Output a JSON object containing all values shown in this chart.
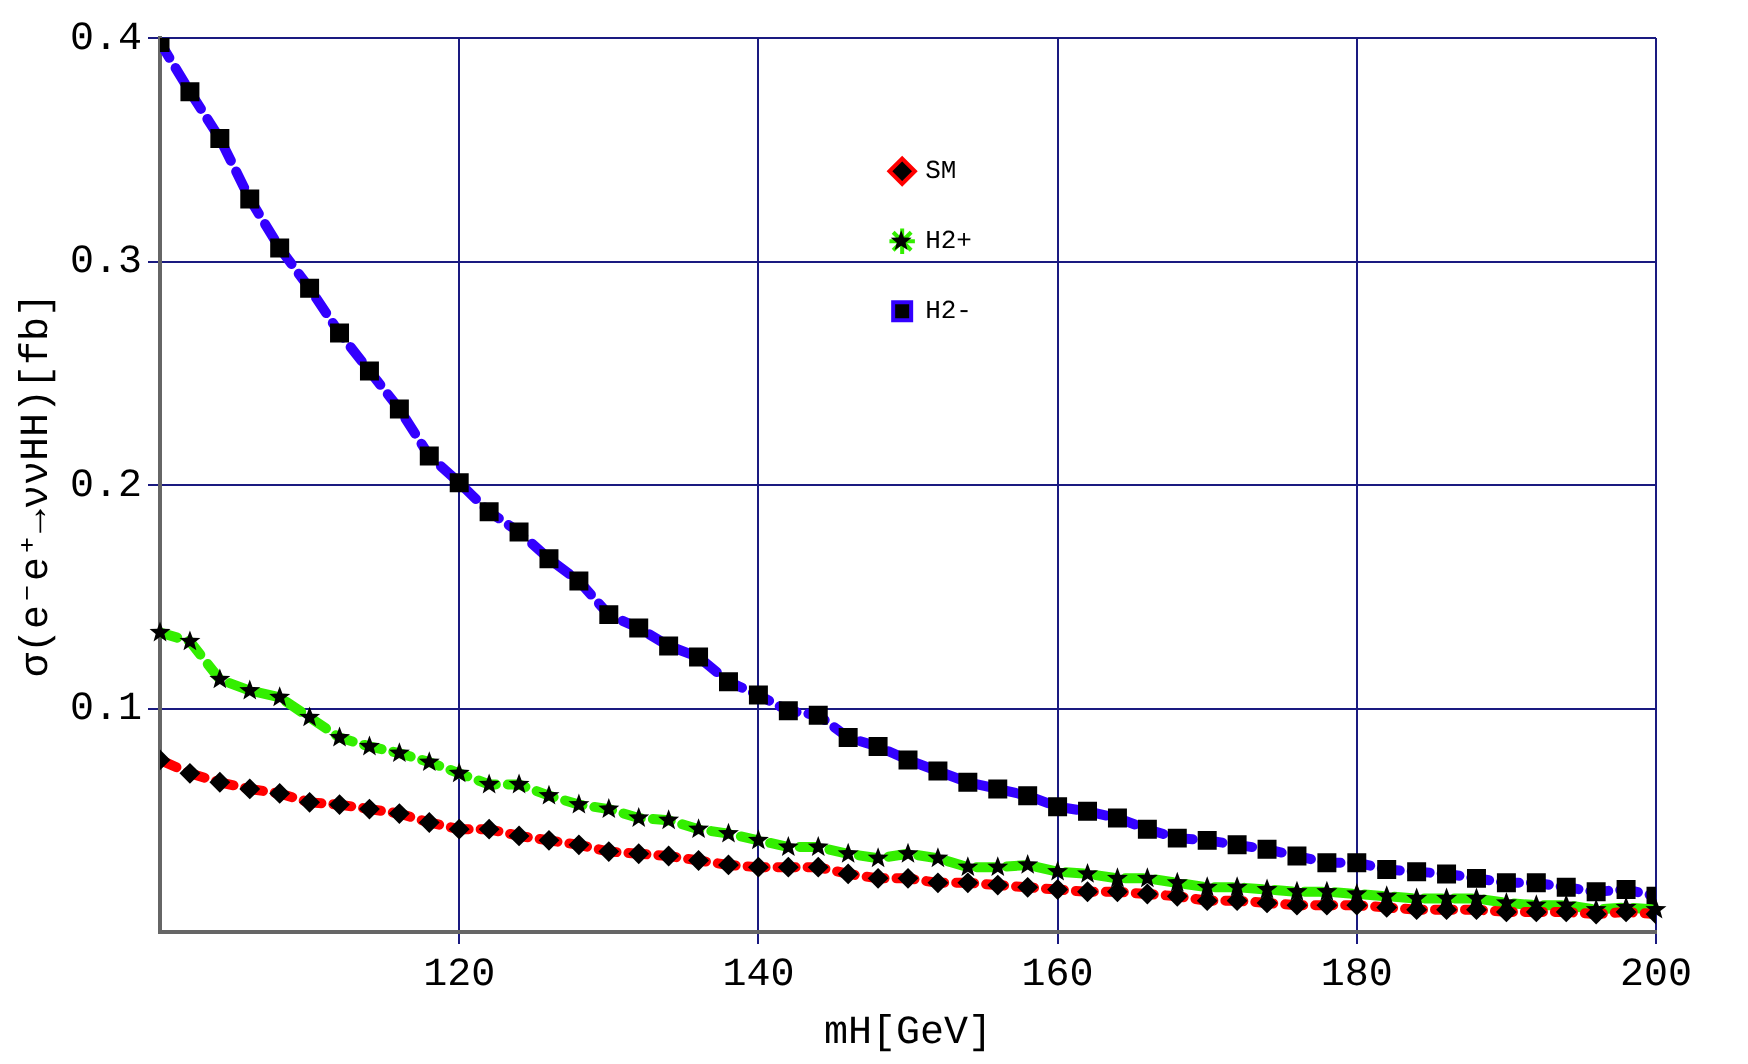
{
  "chart_data": {
    "type": "line",
    "xlabel": "mH[GeV]",
    "ylabel": "σ(e⁻e⁺→ννHH)[fb]",
    "xlim": [
      100,
      200
    ],
    "ylim": [
      0,
      0.4
    ],
    "xticks": [
      120,
      140,
      160,
      180,
      200
    ],
    "yticks": [
      0.1,
      0.2,
      0.3,
      0.4
    ],
    "grid": true,
    "legend": "top right",
    "line_style": "dashed",
    "x": [
      100,
      102,
      104,
      106,
      108,
      110,
      112,
      114,
      116,
      118,
      120,
      122,
      124,
      126,
      128,
      130,
      132,
      134,
      136,
      138,
      140,
      142,
      144,
      146,
      148,
      150,
      152,
      154,
      156,
      158,
      160,
      162,
      164,
      166,
      168,
      170,
      172,
      174,
      176,
      178,
      180,
      182,
      184,
      186,
      188,
      190,
      192,
      194,
      196,
      198,
      200
    ],
    "series": [
      {
        "name": "SM",
        "color": "#ff0000",
        "marker": "diamond",
        "values": [
          0.077,
          0.071,
          0.067,
          0.064,
          0.062,
          0.058,
          0.057,
          0.055,
          0.053,
          0.049,
          0.046,
          0.046,
          0.043,
          0.041,
          0.039,
          0.036,
          0.035,
          0.034,
          0.032,
          0.03,
          0.029,
          0.029,
          0.029,
          0.026,
          0.024,
          0.024,
          0.022,
          0.022,
          0.021,
          0.02,
          0.019,
          0.018,
          0.018,
          0.017,
          0.016,
          0.014,
          0.014,
          0.013,
          0.012,
          0.012,
          0.012,
          0.011,
          0.01,
          0.01,
          0.01,
          0.009,
          0.009,
          0.009,
          0.008,
          0.009,
          0.008
        ]
      },
      {
        "name": "H2+",
        "color": "#33ee00",
        "marker": "star",
        "values": [
          0.134,
          0.13,
          0.113,
          0.108,
          0.105,
          0.096,
          0.087,
          0.083,
          0.08,
          0.076,
          0.071,
          0.066,
          0.066,
          0.061,
          0.057,
          0.055,
          0.051,
          0.05,
          0.046,
          0.044,
          0.041,
          0.038,
          0.038,
          0.035,
          0.033,
          0.035,
          0.033,
          0.029,
          0.029,
          0.03,
          0.027,
          0.026,
          0.024,
          0.024,
          0.022,
          0.02,
          0.02,
          0.019,
          0.018,
          0.018,
          0.017,
          0.016,
          0.015,
          0.015,
          0.015,
          0.013,
          0.012,
          0.012,
          0.01,
          0.011,
          0.01
        ]
      },
      {
        "name": "H2-",
        "color": "#3300ff",
        "marker": "square",
        "values": [
          0.398,
          0.376,
          0.355,
          0.328,
          0.306,
          0.288,
          0.268,
          0.251,
          0.234,
          0.213,
          0.201,
          0.188,
          0.179,
          0.167,
          0.157,
          0.142,
          0.136,
          0.128,
          0.123,
          0.112,
          0.106,
          0.099,
          0.097,
          0.087,
          0.083,
          0.077,
          0.072,
          0.067,
          0.064,
          0.061,
          0.056,
          0.054,
          0.051,
          0.046,
          0.042,
          0.041,
          0.039,
          0.037,
          0.034,
          0.031,
          0.031,
          0.028,
          0.027,
          0.026,
          0.024,
          0.022,
          0.022,
          0.02,
          0.018,
          0.019,
          0.016
        ]
      }
    ]
  }
}
